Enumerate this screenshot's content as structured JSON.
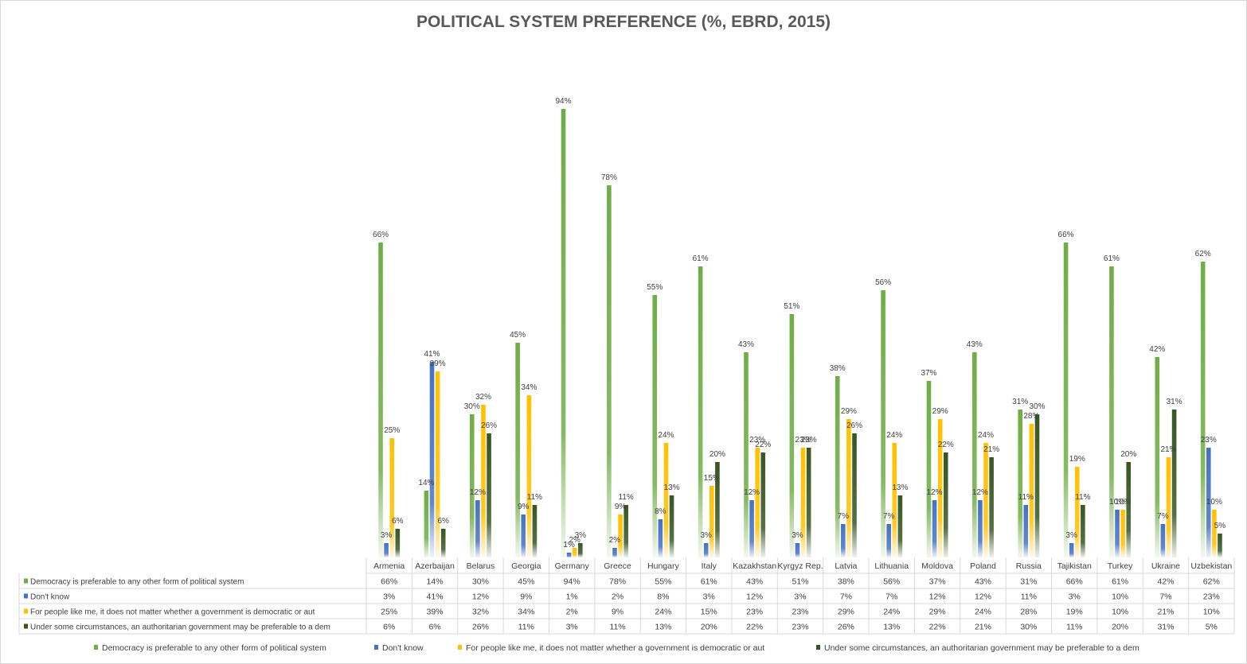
{
  "chart_data": {
    "type": "bar",
    "title": "POLITICAL SYSTEM PREFERENCE (%, EBRD, 2015)",
    "ylim": [
      0,
      100
    ],
    "value_format": "percent",
    "legend_position": "bottom",
    "data_table": true,
    "categories": [
      "Armenia",
      "Azerbaijan",
      "Belarus",
      "Georgia",
      "Germany",
      "Greece",
      "Hungary",
      "Italy",
      "Kazakhstan",
      "Kyrgyz Rep.",
      "Latvia",
      "Lithuania",
      "Moldova",
      "Poland",
      "Russia",
      "Tajikistan",
      "Turkey",
      "Ukraine",
      "Uzbekistan"
    ],
    "series": [
      {
        "name": "Democracy is preferable to any other form of political system",
        "color": "#70ad47",
        "values": [
          66,
          14,
          30,
          45,
          94,
          78,
          55,
          61,
          43,
          51,
          38,
          56,
          37,
          43,
          31,
          66,
          61,
          42,
          62
        ]
      },
      {
        "name": "Don't know",
        "color": "#4472c4",
        "values": [
          3,
          41,
          12,
          9,
          1,
          2,
          8,
          3,
          12,
          3,
          7,
          7,
          12,
          12,
          11,
          3,
          10,
          7,
          23
        ]
      },
      {
        "name": "For people like me, it does not matter whether a government is democratic or aut",
        "color": "#ffc000",
        "values": [
          25,
          39,
          32,
          34,
          2,
          9,
          24,
          15,
          23,
          23,
          29,
          24,
          29,
          24,
          28,
          19,
          10,
          21,
          10
        ]
      },
      {
        "name": "Under some circumstances, an authoritarian government may be preferable to a dem",
        "color": "#375623",
        "values": [
          6,
          6,
          26,
          11,
          3,
          11,
          13,
          20,
          22,
          23,
          26,
          13,
          22,
          21,
          30,
          11,
          20,
          31,
          5
        ]
      }
    ]
  }
}
